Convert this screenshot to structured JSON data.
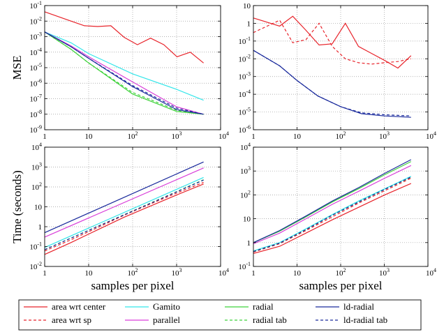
{
  "colors": {
    "area_wrt_center": "#e8232a",
    "area_wrt_sp": "#e8232a",
    "gamito": "#33e6ea",
    "parallel": "#d93ed9",
    "radial": "#3ed23a",
    "radial_tab": "#3ed23a",
    "ld_radial": "#1a2a9c",
    "ld_radial_tab": "#1a2a9c"
  },
  "legend": [
    {
      "key": "area_wrt_center",
      "label": "area wrt center",
      "dash": "solid"
    },
    {
      "key": "gamito",
      "label": "Gamito",
      "dash": "solid"
    },
    {
      "key": "radial",
      "label": "radial",
      "dash": "solid"
    },
    {
      "key": "ld_radial",
      "label": "ld-radial",
      "dash": "solid"
    },
    {
      "key": "area_wrt_sp",
      "label": "area wrt sp",
      "dash": "dashed"
    },
    {
      "key": "parallel",
      "label": "parallel",
      "dash": "solid"
    },
    {
      "key": "radial_tab",
      "label": "radial tab",
      "dash": "dashed"
    },
    {
      "key": "ld_radial_tab",
      "label": "ld-radial tab",
      "dash": "dashed"
    }
  ],
  "chart_data": [
    {
      "id": "mse-left",
      "type": "line",
      "xscale": "log",
      "yscale": "log",
      "xlim": [
        1,
        10000
      ],
      "ylim": [
        1e-09,
        0.1
      ],
      "xticks": [
        "1",
        "10",
        "10^2",
        "10^3",
        "10^4"
      ],
      "yticks": [
        "10^-9",
        "10^-8",
        "10^-7",
        "10^-6",
        "10^-5",
        "10^-4",
        "10^-3",
        "10^-2",
        "10^-1"
      ],
      "ylabel": "MSE",
      "xlabel": "",
      "grid": true,
      "series": [
        {
          "key": "area_wrt_center",
          "x": [
            1,
            4,
            8,
            16,
            32,
            64,
            128,
            256,
            512,
            1024,
            2048,
            4096
          ],
          "y": [
            0.04,
            0.01,
            0.005,
            0.0045,
            0.005,
            0.0009,
            0.0003,
            0.0008,
            0.0003,
            5e-05,
            0.0001,
            2e-05
          ]
        },
        {
          "key": "gamito",
          "x": [
            1,
            4,
            10,
            100,
            1000,
            4096
          ],
          "y": [
            0.002,
            0.0004,
            8e-05,
            4e-06,
            4e-07,
            8e-08
          ]
        },
        {
          "key": "parallel",
          "x": [
            1,
            4,
            10,
            100,
            1000,
            4096
          ],
          "y": [
            0.002,
            0.00025,
            5e-05,
            1.2e-06,
            3e-08,
            1e-08
          ]
        },
        {
          "key": "radial",
          "x": [
            1,
            4,
            10,
            100,
            1000,
            4096
          ],
          "y": [
            0.002,
            0.00015,
            2e-05,
            2e-07,
            1.5e-08,
            1e-08
          ]
        },
        {
          "key": "radial_tab",
          "x": [
            1,
            4,
            10,
            100,
            1000,
            4096
          ],
          "y": [
            0.002,
            0.00015,
            2e-05,
            2.5e-07,
            1.8e-08,
            1e-08
          ]
        },
        {
          "key": "ld_radial",
          "x": [
            1,
            4,
            10,
            100,
            1000,
            4096
          ],
          "y": [
            0.002,
            0.00022,
            4e-05,
            6e-07,
            2e-08,
            1e-08
          ]
        },
        {
          "key": "ld_radial_tab",
          "x": [
            1,
            4,
            10,
            100,
            1000,
            4096
          ],
          "y": [
            0.002,
            0.00022,
            4e-05,
            7e-07,
            2.5e-08,
            1e-08
          ]
        }
      ]
    },
    {
      "id": "mse-right",
      "type": "line",
      "xscale": "log",
      "yscale": "log",
      "xlim": [
        1,
        10000
      ],
      "ylim": [
        1e-06,
        10
      ],
      "xticks": [
        "1",
        "10",
        "10^2",
        "10^3",
        "10^4"
      ],
      "yticks": [
        "10^-6",
        "10^-5",
        "10^-4",
        "10^-3",
        "10^-2",
        "10^-1",
        "1",
        "10"
      ],
      "ylabel": "",
      "xlabel": "",
      "grid": true,
      "series": [
        {
          "key": "area_wrt_center",
          "x": [
            1,
            4,
            8,
            16,
            32,
            64,
            128,
            256,
            512,
            1024,
            2048,
            4096
          ],
          "y": [
            2,
            0.7,
            2.5,
            0.4,
            0.06,
            0.07,
            1.0,
            0.05,
            0.02,
            0.008,
            0.003,
            0.015
          ]
        },
        {
          "key": "area_wrt_sp",
          "x": [
            1,
            4,
            8,
            16,
            32,
            64,
            128,
            256,
            512,
            1024,
            2048,
            4096
          ],
          "y": [
            0.3,
            1.5,
            0.08,
            0.12,
            1.0,
            0.05,
            0.01,
            0.006,
            0.005,
            0.006,
            0.007,
            0.01
          ]
        },
        {
          "key": "ld_radial",
          "x": [
            1,
            4,
            10,
            30,
            100,
            300,
            1000,
            4096
          ],
          "y": [
            0.03,
            0.004,
            0.0006,
            8e-05,
            2e-05,
            8e-06,
            6e-06,
            5e-06
          ]
        },
        {
          "key": "ld_radial_tab",
          "x": [
            1,
            4,
            10,
            30,
            100,
            300,
            1000,
            4096
          ],
          "y": [
            0.03,
            0.004,
            0.0006,
            8e-05,
            2e-05,
            9e-06,
            7e-06,
            6e-06
          ]
        }
      ]
    },
    {
      "id": "time-left",
      "type": "line",
      "xscale": "log",
      "yscale": "log",
      "xlim": [
        1,
        10000
      ],
      "ylim": [
        0.01,
        10000
      ],
      "xticks": [
        "1",
        "10",
        "10^2",
        "10^3",
        "10^4"
      ],
      "yticks": [
        "10^-2",
        "10^-1",
        "1",
        "10",
        "10^2",
        "10^3",
        "10^4"
      ],
      "ylabel": "Time (seconds)",
      "xlabel": "samples per pixel",
      "grid": true,
      "series": [
        {
          "key": "area_wrt_center",
          "x": [
            1,
            4,
            16,
            64,
            256,
            1024,
            4096
          ],
          "y": [
            0.04,
            0.16,
            0.7,
            3,
            11,
            40,
            140
          ]
        },
        {
          "key": "area_wrt_sp",
          "x": [
            1,
            4,
            16,
            64,
            256,
            1024,
            4096
          ],
          "y": [
            0.06,
            0.22,
            0.9,
            3.8,
            14,
            50,
            170
          ]
        },
        {
          "key": "gamito",
          "x": [
            1,
            4096
          ],
          "y": [
            0.09,
            300
          ]
        },
        {
          "key": "parallel",
          "x": [
            1,
            4096
          ],
          "y": [
            0.3,
            900
          ]
        },
        {
          "key": "radial_tab",
          "x": [
            1,
            4096
          ],
          "y": [
            0.07,
            230
          ]
        },
        {
          "key": "ld_radial",
          "x": [
            1,
            4096
          ],
          "y": [
            0.5,
            1800
          ]
        },
        {
          "key": "ld_radial_tab",
          "x": [
            1,
            4096
          ],
          "y": [
            0.07,
            220
          ]
        }
      ]
    },
    {
      "id": "time-right",
      "type": "line",
      "xscale": "log",
      "yscale": "log",
      "xlim": [
        1,
        10000
      ],
      "ylim": [
        0.1,
        10000
      ],
      "xticks": [
        "1",
        "10",
        "10^2",
        "10^3",
        "10^4"
      ],
      "yticks": [
        "10^-1",
        "1",
        "10",
        "10^2",
        "10^3",
        "10^4"
      ],
      "ylabel": "",
      "xlabel": "samples per pixel",
      "grid": true,
      "series": [
        {
          "key": "area_wrt_center",
          "x": [
            1,
            4,
            16,
            64,
            256,
            1024,
            4096
          ],
          "y": [
            0.35,
            0.7,
            2.5,
            9,
            30,
            100,
            300
          ]
        },
        {
          "key": "area_wrt_sp",
          "x": [
            1,
            4,
            16,
            64,
            256,
            1024,
            4096
          ],
          "y": [
            0.4,
            0.9,
            3.2,
            12,
            45,
            150,
            500
          ]
        },
        {
          "key": "gamito",
          "x": [
            1,
            4,
            16,
            64,
            256,
            1024,
            4096
          ],
          "y": [
            0.45,
            1.0,
            3.8,
            15,
            55,
            180,
            600
          ]
        },
        {
          "key": "radial_tab",
          "x": [
            1,
            4,
            16,
            64,
            256,
            1024,
            4096
          ],
          "y": [
            0.42,
            0.95,
            3.5,
            14,
            50,
            170,
            550
          ]
        },
        {
          "key": "parallel",
          "x": [
            1,
            4,
            16,
            64,
            256,
            1024,
            4096
          ],
          "y": [
            0.9,
            2.5,
            10,
            40,
            140,
            500,
            1700
          ]
        },
        {
          "key": "radial",
          "x": [
            1,
            4,
            16,
            64,
            256,
            1024,
            4096
          ],
          "y": [
            1.0,
            3.0,
            12,
            50,
            180,
            700,
            2500
          ]
        },
        {
          "key": "ld_radial",
          "x": [
            1,
            4,
            16,
            64,
            256,
            1024,
            4096
          ],
          "y": [
            1.0,
            3.2,
            13,
            55,
            200,
            800,
            3000
          ]
        },
        {
          "key": "ld_radial_tab",
          "x": [
            1,
            4,
            16,
            64,
            256,
            1024,
            4096
          ],
          "y": [
            0.42,
            0.95,
            3.5,
            14,
            50,
            170,
            560
          ]
        }
      ]
    }
  ]
}
